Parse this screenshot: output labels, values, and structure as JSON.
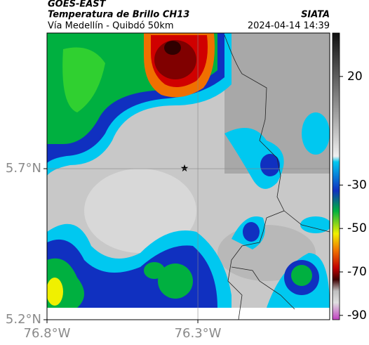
{
  "header": {
    "title": "GOES-EAST",
    "subtitle": "Temperatura de Brillo CH13",
    "region": "Vía Medellín - Quibdó 50km",
    "source": "SIATA",
    "datetime": "2024-04-14 14:39"
  },
  "map": {
    "xlim": [
      -76.8,
      -75.863
    ],
    "ylim": [
      5.2,
      6.149
    ],
    "xticks": [
      {
        "value": -76.8,
        "label": "76.8°W"
      },
      {
        "value": -76.3,
        "label": "76.3°W"
      }
    ],
    "yticks": [
      {
        "value": 5.7,
        "label": "5.7°N"
      },
      {
        "value": 5.2,
        "label": "5.2°N"
      }
    ],
    "grid": true
  },
  "colorbar": {
    "lim": [
      -92,
      40
    ],
    "ticks": [
      20,
      -30,
      -50,
      -70,
      -90
    ]
  }
}
